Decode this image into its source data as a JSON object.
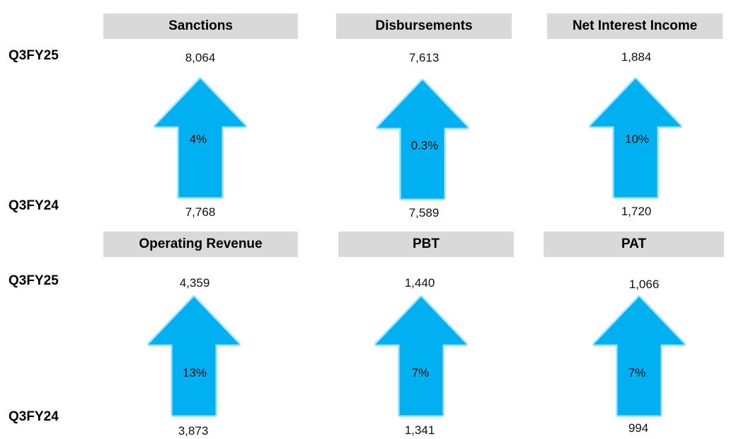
{
  "row_labels": {
    "current": "Q3FY25",
    "previous": "Q3FY24"
  },
  "colors": {
    "arrow_fill": "#00b0f0",
    "arrow_glow": "#a8e4fb",
    "header_bg": "#d9d9d9"
  },
  "arrow_icon": "up-arrow-icon",
  "metrics": [
    {
      "title": "Sanctions",
      "current": "8,064",
      "previous": "7,768",
      "growth": "4%"
    },
    {
      "title": "Disbursements",
      "current": "7,613",
      "previous": "7,589",
      "growth": "0.3%"
    },
    {
      "title": "Net Interest Income",
      "current": "1,884",
      "previous": "1,720",
      "growth": "10%"
    },
    {
      "title": "Operating Revenue",
      "current": "4,359",
      "previous": "3,873",
      "growth": "13%"
    },
    {
      "title": "PBT",
      "current": "1,440",
      "previous": "1,341",
      "growth": "7%"
    },
    {
      "title": "PAT",
      "current": "1,066",
      "previous": "994",
      "growth": "7%"
    }
  ]
}
